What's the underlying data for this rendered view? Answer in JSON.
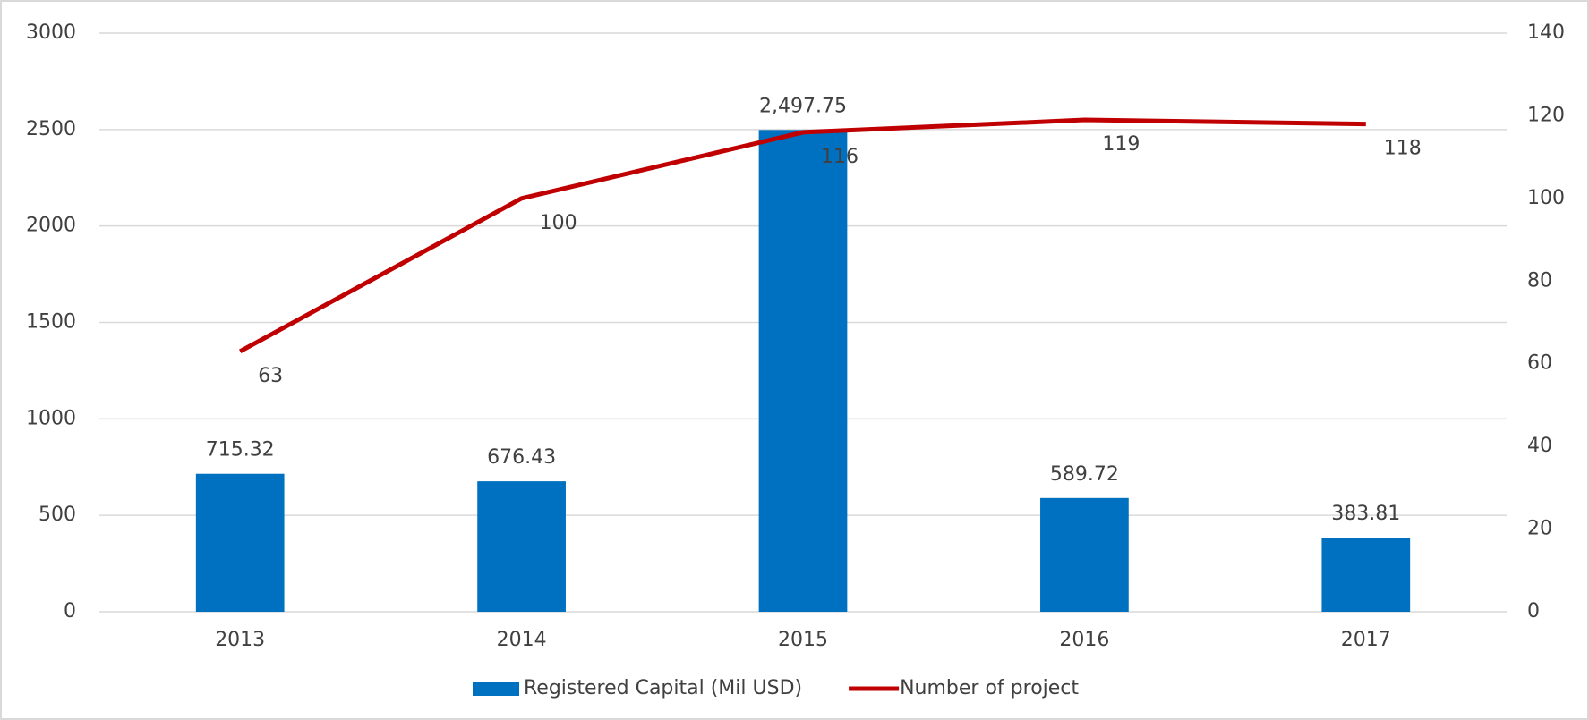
{
  "chart_data": {
    "type": "combo",
    "categories": [
      "2013",
      "2014",
      "2015",
      "2016",
      "2017"
    ],
    "series": [
      {
        "name": "Registered Capital (Mil USD)",
        "type": "bar",
        "color": "#0070c0",
        "axis": "y",
        "values": [
          715.32,
          676.43,
          2497.75,
          589.72,
          383.81
        ],
        "value_labels": [
          "715.32",
          "676.43",
          "2,497.75",
          "589.72",
          "383.81"
        ]
      },
      {
        "name": "Number of project",
        "type": "line",
        "color": "#c00000",
        "axis": "y2",
        "values": [
          63,
          100,
          116,
          119,
          118
        ]
      }
    ],
    "ylim": [
      0,
      3000
    ],
    "yticks": [
      0,
      500,
      1000,
      1500,
      2000,
      2500,
      3000
    ],
    "y2lim": [
      0,
      140
    ],
    "y2ticks": [
      0,
      20,
      40,
      60,
      80,
      100,
      120,
      140
    ],
    "grid": true,
    "legend": "bottom"
  }
}
